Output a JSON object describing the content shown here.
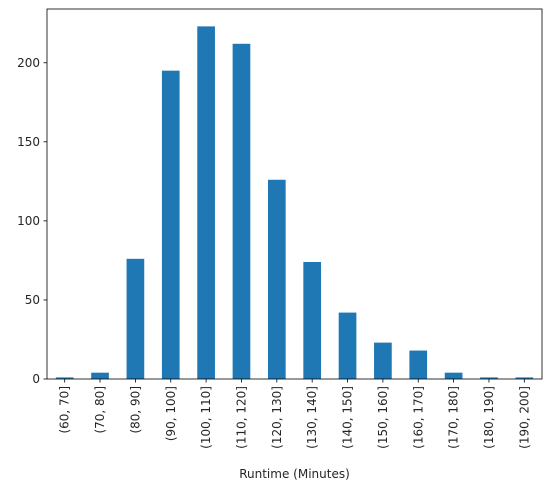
{
  "chart_data": {
    "type": "bar",
    "categories": [
      "(60, 70]",
      "(70, 80]",
      "(80, 90]",
      "(90, 100]",
      "(100, 110]",
      "(110, 120]",
      "(120, 130]",
      "(130, 140]",
      "(140, 150]",
      "(150, 160]",
      "(160, 170]",
      "(170, 180]",
      "(180, 190]",
      "(190, 200]"
    ],
    "values": [
      1,
      4,
      76,
      195,
      223,
      212,
      126,
      74,
      42,
      23,
      18,
      4,
      1,
      1
    ],
    "title": "",
    "xlabel": "Runtime (Minutes)",
    "ylabel": "",
    "ylim": [
      0,
      234
    ],
    "yticks": [
      0,
      50,
      100,
      150,
      200
    ],
    "bar_color": "#1f77b4",
    "grid": false,
    "legend": "none"
  }
}
